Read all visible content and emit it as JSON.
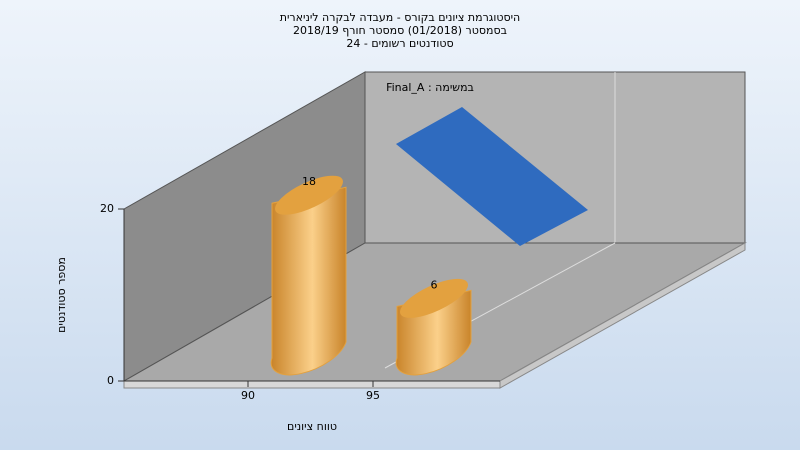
{
  "chart_data": {
    "type": "bar",
    "title": [
      "היסטוגרמת ציונים בקורס - מעבדה לבקרה ליניארית",
      "בסמסטר (01/2018)  סמסטר חורף 2018/19",
      "סטודנטים רשומים - 24"
    ],
    "x_label": "טווח ציונים",
    "y_label": "מספר סטודנטים",
    "categories": [
      "90",
      "95"
    ],
    "series": [
      {
        "name": "במשימה : Final_A",
        "color": "#e3a13f",
        "values": [
          18,
          6
        ]
      }
    ],
    "ylim": [
      0,
      20
    ],
    "yticks": [
      0,
      20
    ]
  }
}
